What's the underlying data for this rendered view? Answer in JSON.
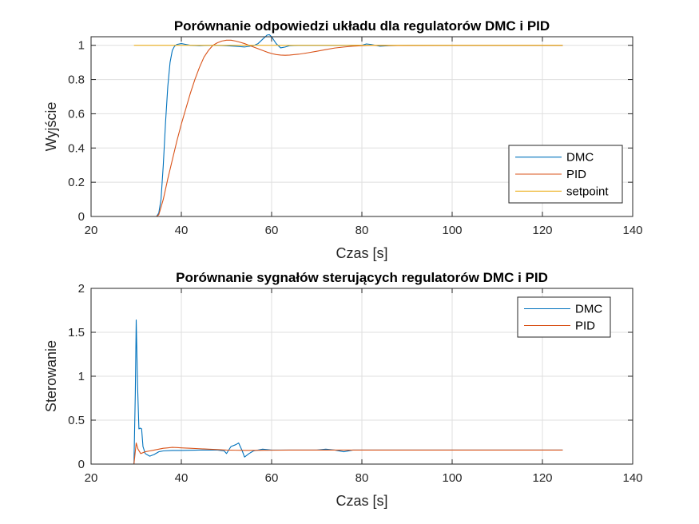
{
  "colors": {
    "DMC": "#0072BD",
    "PID": "#D95319",
    "setpoint": "#EDB120",
    "grid": "#dfdfdf",
    "axis": "#262626"
  },
  "chart_data": [
    {
      "type": "line",
      "title": "Porównanie odpowiedzi układu dla regulatorów DMC i PID",
      "xlabel": "Czas [s]",
      "ylabel": "Wyjście",
      "xlim": [
        20,
        140
      ],
      "ylim": [
        0,
        1.05
      ],
      "xticks": [
        20,
        40,
        60,
        80,
        100,
        120,
        140
      ],
      "yticks": [
        0,
        0.2,
        0.4,
        0.6,
        0.8,
        1
      ],
      "xtick_labels": [
        "20",
        "40",
        "60",
        "80",
        "100",
        "120",
        "140"
      ],
      "ytick_labels": [
        "0",
        "0.2",
        "0.4",
        "0.6",
        "0.8",
        "1"
      ],
      "grid": true,
      "legend": "bottom-right",
      "series": [
        {
          "name": "DMC",
          "x": [
            29.5,
            34.5,
            35,
            35.5,
            36,
            36.5,
            37,
            37.5,
            38,
            38.5,
            39,
            40,
            41,
            42,
            44,
            46,
            48,
            50,
            52,
            54,
            56,
            57,
            58,
            59,
            59.5,
            60,
            61,
            62,
            63,
            64,
            66,
            70,
            80,
            81,
            82,
            84,
            86,
            90,
            100,
            110,
            124.5
          ],
          "y": [
            0,
            0,
            0.02,
            0.1,
            0.3,
            0.55,
            0.76,
            0.9,
            0.97,
            0.995,
            1.005,
            1.01,
            1.005,
            1.0,
            0.998,
            1.0,
            1.0,
            0.998,
            0.994,
            0.99,
            0.998,
            1.01,
            1.035,
            1.06,
            1.062,
            1.05,
            1.01,
            0.985,
            0.99,
            0.998,
            1.0,
            1.0,
            1.0,
            1.008,
            1.005,
            0.995,
            0.998,
            1.0,
            1.0,
            1.0,
            1.0
          ]
        },
        {
          "name": "PID",
          "x": [
            29.5,
            34.5,
            35,
            36,
            37,
            38,
            39,
            40,
            41,
            42,
            43,
            44,
            45,
            46,
            47,
            48,
            49,
            50,
            51,
            52,
            53,
            54,
            55,
            56,
            57,
            58,
            59,
            60,
            61,
            62,
            63,
            64,
            66,
            68,
            70,
            72,
            74,
            76,
            78,
            80,
            82,
            84,
            86,
            90,
            100,
            110,
            124.5
          ],
          "y": [
            0,
            0,
            0.01,
            0.1,
            0.22,
            0.33,
            0.44,
            0.54,
            0.63,
            0.72,
            0.8,
            0.87,
            0.93,
            0.97,
            1.0,
            1.015,
            1.025,
            1.03,
            1.03,
            1.025,
            1.018,
            1.01,
            1.0,
            0.99,
            0.98,
            0.97,
            0.96,
            0.952,
            0.946,
            0.943,
            0.942,
            0.943,
            0.948,
            0.956,
            0.965,
            0.975,
            0.984,
            0.99,
            0.995,
            0.998,
            1.0,
            1.0,
            0.999,
            0.999,
            1.0,
            1.0,
            1.0
          ]
        },
        {
          "name": "setpoint",
          "x": [
            29.5,
            124.5
          ],
          "y": [
            1,
            1
          ]
        }
      ]
    },
    {
      "type": "line",
      "title": "Porównanie sygnałów sterujących regulatorów DMC i PID",
      "xlabel": "Czas [s]",
      "ylabel": "Sterowanie",
      "xlim": [
        20,
        140
      ],
      "ylim": [
        0,
        2
      ],
      "xticks": [
        20,
        40,
        60,
        80,
        100,
        120,
        140
      ],
      "yticks": [
        0,
        0.5,
        1,
        1.5,
        2
      ],
      "xtick_labels": [
        "20",
        "40",
        "60",
        "80",
        "100",
        "120",
        "140"
      ],
      "ytick_labels": [
        "0",
        "0.5",
        "1",
        "1.5",
        "2"
      ],
      "grid": true,
      "legend": "top-right",
      "series": [
        {
          "name": "DMC",
          "x": [
            29.5,
            29.8,
            30.0,
            30.3,
            30.6,
            30.9,
            31.2,
            31.5,
            32,
            33,
            34,
            35,
            36,
            38,
            40,
            44,
            48,
            49.5,
            50,
            51,
            52,
            52.7,
            53.5,
            54,
            55,
            56,
            58,
            60,
            65,
            70,
            72,
            74,
            76,
            78,
            80,
            85,
            90,
            100,
            110,
            124.5
          ],
          "y": [
            0,
            0.8,
            1.64,
            0.9,
            0.4,
            0.41,
            0.4,
            0.2,
            0.12,
            0.09,
            0.11,
            0.14,
            0.15,
            0.155,
            0.155,
            0.16,
            0.16,
            0.15,
            0.12,
            0.2,
            0.22,
            0.24,
            0.15,
            0.08,
            0.12,
            0.15,
            0.17,
            0.16,
            0.16,
            0.16,
            0.17,
            0.16,
            0.14,
            0.16,
            0.16,
            0.16,
            0.16,
            0.16,
            0.16,
            0.16
          ]
        },
        {
          "name": "PID",
          "x": [
            29.5,
            30.0,
            30.4,
            31,
            32,
            33,
            34,
            35,
            36,
            37,
            38,
            39,
            40,
            42,
            44,
            46,
            48,
            50,
            52,
            54,
            56,
            58,
            60,
            64,
            70,
            80,
            90,
            100,
            110,
            124.5
          ],
          "y": [
            0,
            0.24,
            0.17,
            0.12,
            0.14,
            0.15,
            0.16,
            0.17,
            0.18,
            0.185,
            0.19,
            0.188,
            0.185,
            0.18,
            0.175,
            0.17,
            0.165,
            0.16,
            0.158,
            0.156,
            0.156,
            0.157,
            0.158,
            0.16,
            0.16,
            0.16,
            0.16,
            0.16,
            0.16,
            0.16
          ]
        }
      ]
    }
  ]
}
